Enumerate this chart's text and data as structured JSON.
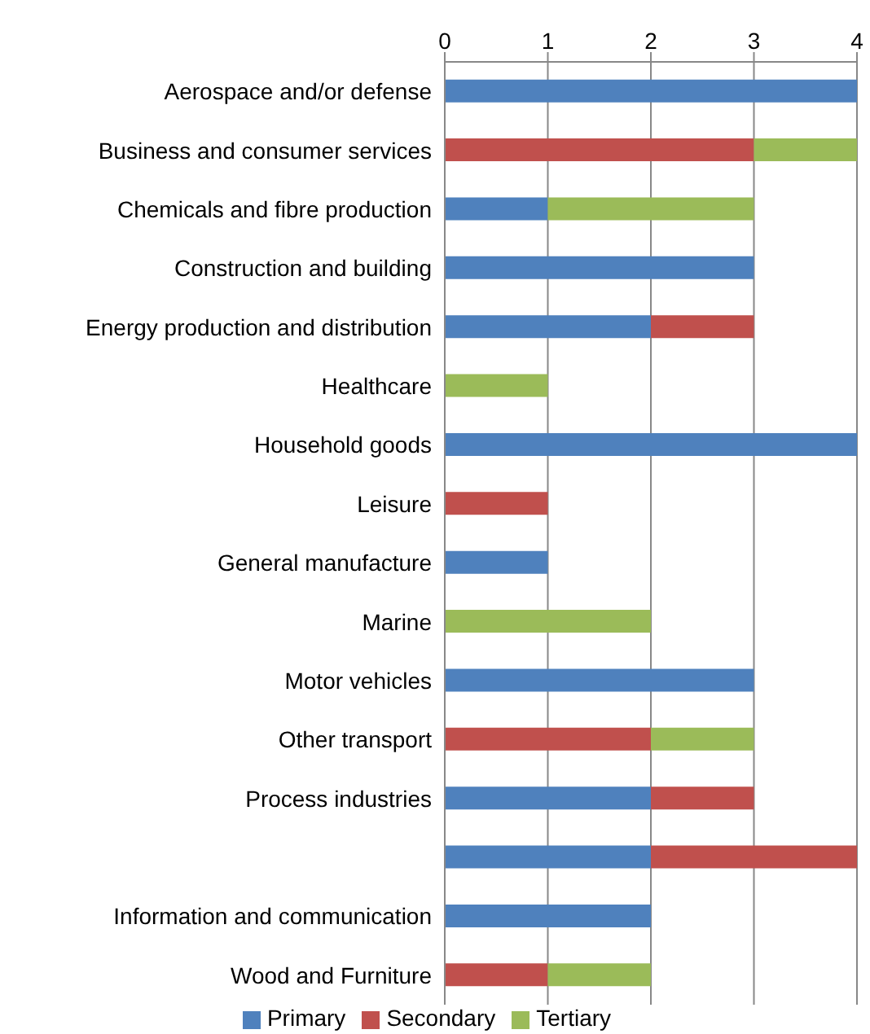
{
  "chart_data": {
    "type": "bar",
    "orientation": "horizontal",
    "stacked": true,
    "categories": [
      "Aerospace and/or defense",
      "Business and consumer services",
      "Chemicals and fibre production",
      "Construction and building",
      "Energy production and distribution",
      "Healthcare",
      "Household goods",
      "Leisure",
      "General manufacture",
      "Marine",
      "Motor vehicles",
      "Other transport",
      "Process industries",
      null,
      "Information and communication",
      "Wood and Furniture"
    ],
    "series": [
      {
        "name": "Primary",
        "color": "#4f81bd",
        "values": [
          4,
          null,
          1,
          3,
          2,
          null,
          4,
          null,
          1,
          null,
          3,
          null,
          2,
          2,
          2,
          null
        ]
      },
      {
        "name": "Secondary",
        "color": "#c0504d",
        "values": [
          null,
          3,
          null,
          null,
          1,
          null,
          null,
          1,
          null,
          null,
          null,
          2,
          1,
          2,
          null,
          1
        ]
      },
      {
        "name": "Tertiary",
        "color": "#9bbb59",
        "values": [
          null,
          1,
          2,
          null,
          null,
          1,
          null,
          null,
          null,
          2,
          null,
          1,
          null,
          null,
          null,
          1
        ]
      }
    ],
    "xlim": [
      0,
      4
    ],
    "xticks": [
      0,
      1,
      2,
      3,
      4
    ],
    "grid": "x",
    "legend": "bottom"
  }
}
